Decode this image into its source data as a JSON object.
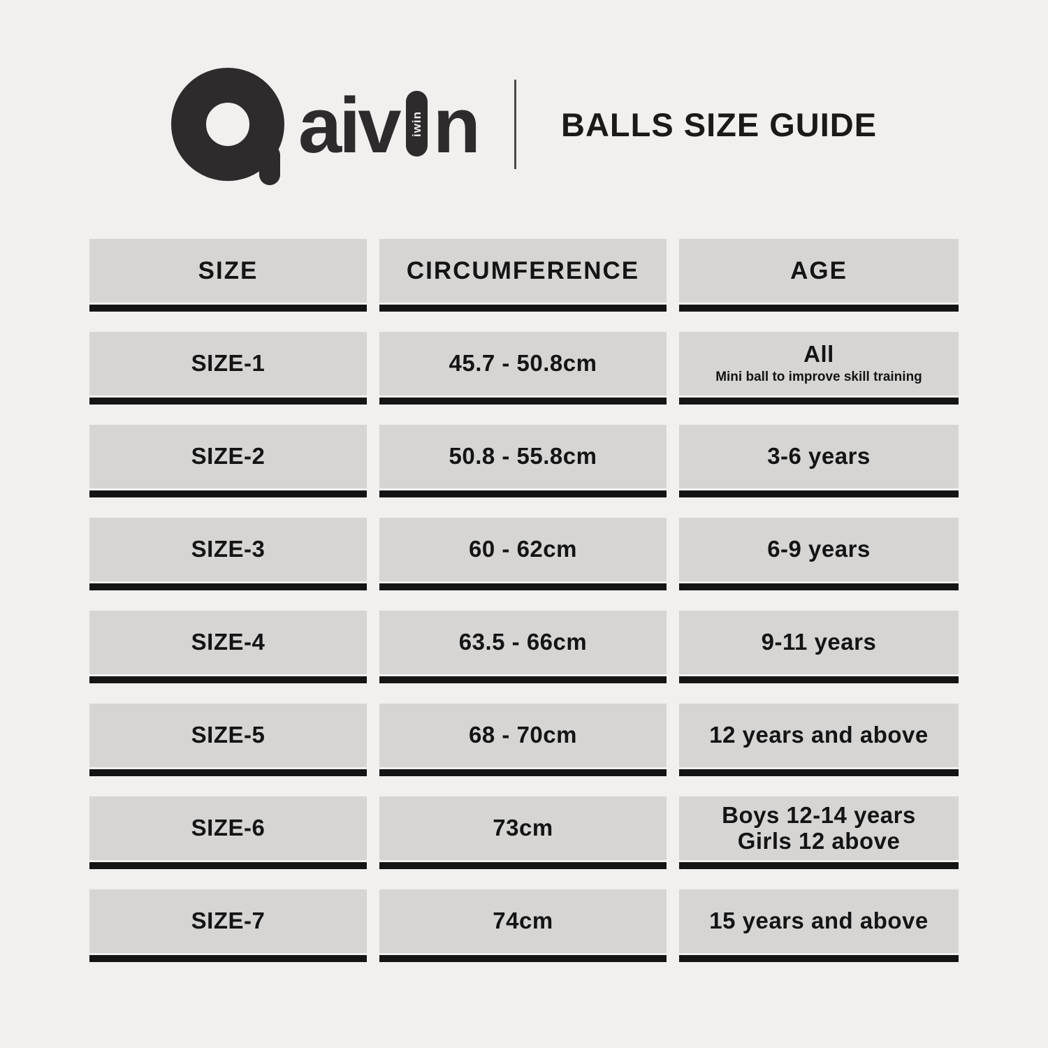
{
  "brand": {
    "logo_icon": "aivin-ring-a-logo",
    "wordmark_left": "aiv",
    "wordmark_vertical": "iwin",
    "wordmark_right": "n",
    "title": "BALLS SIZE GUIDE"
  },
  "table": {
    "headers": [
      "SIZE",
      "CIRCUMFERENCE",
      "AGE"
    ],
    "rows": [
      {
        "size": "SIZE-1",
        "circumference": "45.7 - 50.8cm",
        "age": "All",
        "age_sub": "Mini ball to improve skill training"
      },
      {
        "size": "SIZE-2",
        "circumference": "50.8 - 55.8cm",
        "age": "3-6 years"
      },
      {
        "size": "SIZE-3",
        "circumference": "60 - 62cm",
        "age": "6-9 years"
      },
      {
        "size": "SIZE-4",
        "circumference": "63.5 - 66cm",
        "age": "9-11 years"
      },
      {
        "size": "SIZE-5",
        "circumference": "68 - 70cm",
        "age": "12 years and above"
      },
      {
        "size": "SIZE-6",
        "circumference": "73cm",
        "age": "Boys 12-14 years",
        "age_line2": "Girls 12 above"
      },
      {
        "size": "SIZE-7",
        "circumference": "74cm",
        "age": "15 years and above"
      }
    ]
  },
  "colors": {
    "background": "#f1f0ef",
    "cell_gray": "#d6d5d4",
    "underline_black": "#141414",
    "logo_dark": "#2d2b2b",
    "text": "#141414"
  },
  "chart_data": {
    "type": "table",
    "title": "BALLS SIZE GUIDE",
    "columns": [
      "SIZE",
      "CIRCUMFERENCE",
      "AGE"
    ],
    "rows": [
      [
        "SIZE-1",
        "45.7 - 50.8cm",
        "All (Mini ball to improve skill training)"
      ],
      [
        "SIZE-2",
        "50.8 - 55.8cm",
        "3-6 years"
      ],
      [
        "SIZE-3",
        "60 - 62cm",
        "6-9 years"
      ],
      [
        "SIZE-4",
        "63.5 - 66cm",
        "9-11 years"
      ],
      [
        "SIZE-5",
        "68 - 70cm",
        "12 years and above"
      ],
      [
        "SIZE-6",
        "73cm",
        "Boys 12-14 years / Girls 12 above"
      ],
      [
        "SIZE-7",
        "74cm",
        "15 years and above"
      ]
    ],
    "legend_position": "none",
    "grid": false
  }
}
